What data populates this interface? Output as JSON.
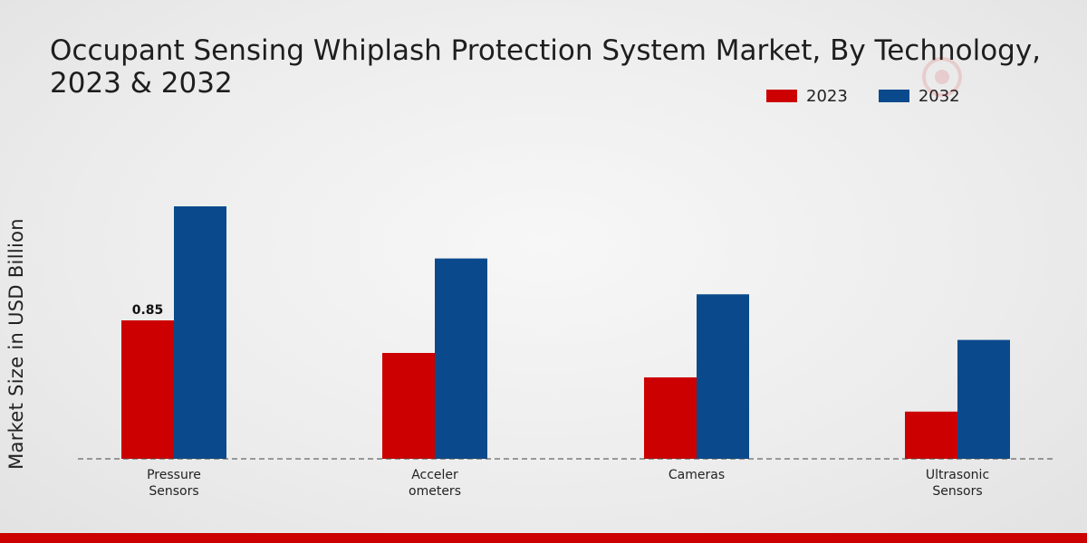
{
  "title": "Occupant Sensing Whiplash Protection System Market, By Technology, 2023 & 2032",
  "legend": [
    {
      "label": "2023",
      "color": "#cc0000"
    },
    {
      "label": "2032",
      "color": "#0a4a8c"
    }
  ],
  "chart_data": {
    "type": "bar",
    "categories": [
      [
        "Pressure",
        "Sensors"
      ],
      [
        "Acceler",
        "ometers"
      ],
      [
        "Cameras"
      ],
      [
        "Ultrasonic",
        "Sensors"
      ]
    ],
    "series": [
      {
        "name": "2023",
        "color": "#cc0000",
        "values": [
          0.85,
          0.65,
          0.5,
          0.29
        ]
      },
      {
        "name": "2032",
        "color": "#0a4a8c",
        "values": [
          1.55,
          1.23,
          1.01,
          0.73
        ]
      }
    ],
    "data_labels": [
      {
        "series": 0,
        "index": 0,
        "text": "0.85"
      }
    ],
    "ylabel": "Market Size in USD Billion",
    "xlabel": "",
    "ylim": [
      0,
      1.8
    ],
    "grid": false,
    "legend_position": "top-right"
  }
}
